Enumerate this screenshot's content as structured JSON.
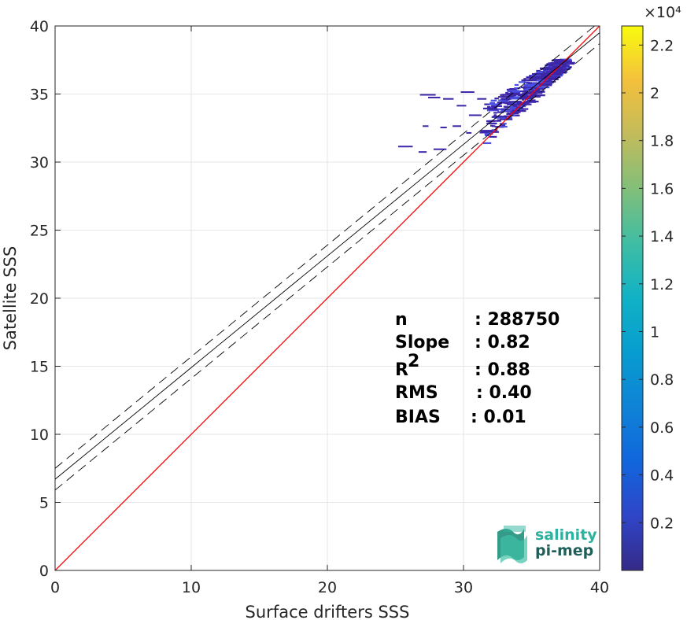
{
  "chart_data": {
    "type": "heatmap",
    "xlabel": "Surface drifters SSS",
    "ylabel": "Satellite SSS",
    "xlim": [
      0,
      40
    ],
    "ylim": [
      0,
      40
    ],
    "xticks": [
      "0",
      "10",
      "20",
      "30",
      "40"
    ],
    "yticks": [
      "0",
      "5",
      "10",
      "15",
      "20",
      "25",
      "30",
      "35",
      "40"
    ],
    "grid": true,
    "colormap": "parula",
    "colorbar": {
      "exponent_label": "×10⁴",
      "ticks": [
        "0.2",
        "0.4",
        "0.6",
        "0.8",
        "1",
        "1.2",
        "1.4",
        "1.6",
        "1.8",
        "2",
        "2.2"
      ],
      "tick_values": [
        0.2,
        0.4,
        0.6,
        0.8,
        1.0,
        1.2,
        1.4,
        1.6,
        1.8,
        2.0,
        2.2
      ],
      "range": [
        0,
        2.28
      ]
    },
    "lines": {
      "identity": {
        "slope": 1,
        "intercept": 0,
        "color": "#ff0000"
      },
      "fit": {
        "slope": 0.82,
        "intercept": 6.7,
        "color": "#000000"
      },
      "fit_upper": {
        "slope": 0.82,
        "intercept": 7.5,
        "color": "#000000",
        "style": "dashed"
      },
      "fit_lower": {
        "slope": 0.82,
        "intercept": 5.9,
        "color": "#000000",
        "style": "dashed"
      }
    },
    "density_cloud": {
      "x_range": [
        25,
        38
      ],
      "y_range": [
        30.7,
        37.6
      ],
      "peak_along": "fit line near x 34-37",
      "color_low": "#3e26a8",
      "color_high": "#4a4fe0"
    },
    "stats": [
      {
        "key": "n",
        "value": ": 288750"
      },
      {
        "key": "Slope",
        "value": ": 0.82"
      },
      {
        "key": "R",
        "sup": "2",
        "value": ": 0.88"
      },
      {
        "key": "RMS",
        "value": ": 0.40"
      },
      {
        "key": "BIAS",
        "value": ": 0.01"
      }
    ]
  },
  "logo": {
    "line1": "salinity",
    "line2": "pi-mep",
    "color1": "#2bb3a0",
    "color2": "#1f5f5a"
  }
}
